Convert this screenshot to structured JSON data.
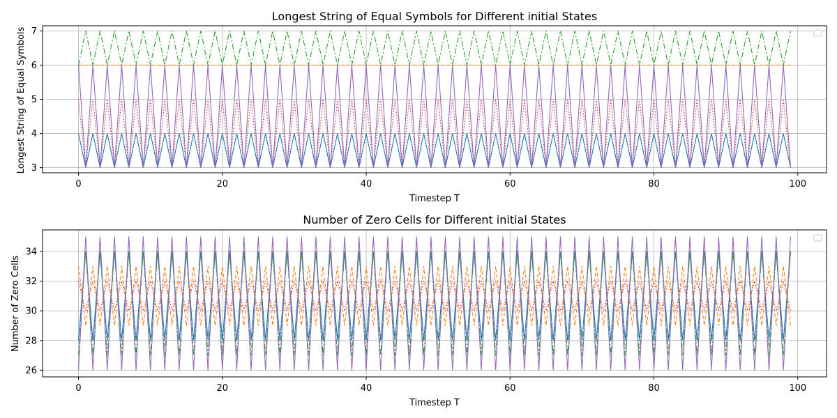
{
  "chart_data": [
    {
      "type": "line",
      "title": "Longest String of Equal Symbols for Different initial States",
      "xlabel": "Timestep T",
      "ylabel": "Longest String of Equal Symbols",
      "xlim": [
        -5,
        104
      ],
      "ylim": [
        2.85,
        7.15
      ],
      "xticks": [
        0,
        20,
        40,
        60,
        80,
        100
      ],
      "yticks": [
        3,
        4,
        5,
        6,
        7
      ],
      "grid": true,
      "legend": "upper-right (empty)",
      "x": {
        "start": 0,
        "end": 99,
        "step": 1
      },
      "series": [
        {
          "color": "#1f77b4",
          "dash": "solid",
          "pattern": [
            4,
            3
          ],
          "values": [
            4,
            3,
            4,
            3,
            4,
            3,
            4,
            3,
            4,
            3,
            4,
            3,
            4,
            3,
            4,
            3,
            4,
            3,
            4,
            3,
            4,
            3,
            4,
            3,
            4,
            3,
            4,
            3,
            4,
            3,
            4,
            3,
            4,
            3,
            4,
            3,
            4,
            3,
            4,
            3,
            4,
            3,
            4,
            3,
            4,
            3,
            4,
            3,
            4,
            3,
            4,
            3,
            4,
            3,
            4,
            3,
            4,
            3,
            4,
            3,
            4,
            3,
            4,
            3,
            4,
            3,
            4,
            3,
            4,
            3,
            4,
            3,
            4,
            3,
            4,
            3,
            4,
            3,
            4,
            3,
            4,
            3,
            4,
            3,
            4,
            3,
            4,
            3,
            4,
            3,
            4,
            3,
            4,
            3,
            4,
            3,
            4,
            3,
            4,
            3
          ]
        },
        {
          "color": "#ff7f0e",
          "dash": "dashed",
          "pattern": [
            6
          ],
          "values": [
            6,
            6,
            6,
            6,
            6,
            6,
            6,
            6,
            6,
            6,
            6,
            6,
            6,
            6,
            6,
            6,
            6,
            6,
            6,
            6,
            6,
            6,
            6,
            6,
            6,
            6,
            6,
            6,
            6,
            6,
            6,
            6,
            6,
            6,
            6,
            6,
            6,
            6,
            6,
            6,
            6,
            6,
            6,
            6,
            6,
            6,
            6,
            6,
            6,
            6,
            6,
            6,
            6,
            6,
            6,
            6,
            6,
            6,
            6,
            6,
            6,
            6,
            6,
            6,
            6,
            6,
            6,
            6,
            6,
            6,
            6,
            6,
            6,
            6,
            6,
            6,
            6,
            6,
            6,
            6,
            6,
            6,
            6,
            6,
            6,
            6,
            6,
            6,
            6,
            6,
            6,
            6,
            6,
            6,
            6,
            6,
            6,
            6,
            6,
            6
          ]
        },
        {
          "color": "#2ca02c",
          "dash": "dashdot",
          "pattern": [
            6,
            7
          ],
          "values": [
            6,
            7,
            6,
            7,
            6,
            7,
            6,
            7,
            6,
            7,
            6,
            7,
            6,
            7,
            6,
            7,
            6,
            7,
            6,
            7,
            6,
            7,
            6,
            7,
            6,
            7,
            6,
            7,
            6,
            7,
            6,
            7,
            6,
            7,
            6,
            7,
            6,
            7,
            6,
            7,
            6,
            7,
            6,
            7,
            6,
            7,
            6,
            7,
            6,
            7,
            6,
            7,
            6,
            7,
            6,
            7,
            6,
            7,
            6,
            7,
            6,
            7,
            6,
            7,
            6,
            7,
            6,
            7,
            6,
            7,
            6,
            7,
            6,
            7,
            6,
            7,
            6,
            7,
            6,
            7,
            6,
            7,
            6,
            7,
            6,
            7,
            6,
            7,
            6,
            7,
            6,
            7,
            6,
            7,
            6,
            7,
            6,
            7,
            6,
            7
          ]
        },
        {
          "color": "#d62728",
          "dash": "dotted",
          "pattern": [
            5,
            3
          ],
          "values": [
            5,
            3,
            5,
            3,
            5,
            3,
            5,
            3,
            5,
            3,
            5,
            3,
            5,
            3,
            5,
            3,
            5,
            3,
            5,
            3,
            5,
            3,
            5,
            3,
            5,
            3,
            5,
            3,
            5,
            3,
            5,
            3,
            5,
            3,
            5,
            3,
            5,
            3,
            5,
            3,
            5,
            3,
            5,
            3,
            5,
            3,
            5,
            3,
            5,
            3,
            5,
            3,
            5,
            3,
            5,
            3,
            5,
            3,
            5,
            3,
            5,
            3,
            5,
            3,
            5,
            3,
            5,
            3,
            5,
            3,
            5,
            3,
            5,
            3,
            5,
            3,
            5,
            3,
            5,
            3,
            5,
            3,
            5,
            3,
            5,
            3,
            5,
            3,
            5,
            3,
            5,
            3,
            5,
            3,
            5,
            3,
            5,
            3,
            5,
            3
          ]
        },
        {
          "color": "#9467bd",
          "dash": "solid",
          "pattern": [
            6,
            3
          ],
          "values": [
            6,
            3,
            6,
            3,
            6,
            3,
            6,
            3,
            6,
            3,
            6,
            3,
            6,
            3,
            6,
            3,
            6,
            3,
            6,
            3,
            6,
            3,
            6,
            3,
            6,
            3,
            6,
            3,
            6,
            3,
            6,
            3,
            6,
            3,
            6,
            3,
            6,
            3,
            6,
            3,
            6,
            3,
            6,
            3,
            6,
            3,
            6,
            3,
            6,
            3,
            6,
            3,
            6,
            3,
            6,
            3,
            6,
            3,
            6,
            3,
            6,
            3,
            6,
            3,
            6,
            3,
            6,
            3,
            6,
            3,
            6,
            3,
            6,
            3,
            6,
            3,
            6,
            3,
            6,
            3,
            6,
            3,
            6,
            3,
            6,
            3,
            6,
            3,
            6,
            3,
            6,
            3,
            6,
            3,
            6,
            3,
            6,
            3,
            6,
            3
          ]
        }
      ]
    },
    {
      "type": "line",
      "title": "Number of Zero Cells for Different initial States",
      "xlabel": "Timestep T",
      "ylabel": "Number of Zero Cells",
      "xlim": [
        -5,
        104
      ],
      "ylim": [
        25.55,
        35.45
      ],
      "xticks": [
        0,
        20,
        40,
        60,
        80,
        100
      ],
      "yticks": [
        26,
        28,
        30,
        32,
        34
      ],
      "grid": true,
      "legend": "upper-right (empty)",
      "x": {
        "start": 0,
        "end": 99,
        "step": 1
      },
      "series": [
        {
          "color": "#1f77b4",
          "dash": "solid",
          "pattern": [
            28,
            34
          ],
          "values": [
            28,
            34,
            28,
            34,
            28,
            34,
            28,
            34,
            28,
            34,
            28,
            34,
            28,
            34,
            28,
            34,
            28,
            34,
            28,
            34,
            28,
            34,
            28,
            34,
            28,
            34,
            28,
            34,
            28,
            34,
            28,
            34,
            28,
            34,
            28,
            34,
            28,
            34,
            28,
            34,
            28,
            34,
            28,
            34,
            28,
            34,
            28,
            34,
            28,
            34,
            28,
            34,
            28,
            34,
            28,
            34,
            28,
            34,
            28,
            34,
            28,
            34,
            28,
            34,
            28,
            34,
            28,
            34,
            28,
            34,
            28,
            34,
            28,
            34,
            28,
            34,
            28,
            34,
            28,
            34,
            28,
            34,
            28,
            34,
            28,
            34,
            28,
            34,
            28,
            34,
            28,
            34,
            28,
            34,
            28,
            34,
            28,
            34,
            28,
            34
          ]
        },
        {
          "color": "#ff7f0e",
          "dash": "dashed",
          "pattern": [
            33,
            29
          ],
          "values": [
            33,
            29,
            33,
            29,
            33,
            29,
            33,
            29,
            33,
            29,
            33,
            29,
            33,
            29,
            33,
            29,
            33,
            29,
            33,
            29,
            33,
            29,
            33,
            29,
            33,
            29,
            33,
            29,
            33,
            29,
            33,
            29,
            33,
            29,
            33,
            29,
            33,
            29,
            33,
            29,
            33,
            29,
            33,
            29,
            33,
            29,
            33,
            29,
            33,
            29,
            33,
            29,
            33,
            29,
            33,
            29,
            33,
            29,
            33,
            29,
            33,
            29,
            33,
            29,
            33,
            29,
            33,
            29,
            33,
            29,
            33,
            29,
            33,
            29,
            33,
            29,
            33,
            29,
            33,
            29,
            33,
            29,
            33,
            29,
            33,
            29,
            33,
            29,
            33,
            29,
            33,
            29,
            33,
            29,
            33,
            29,
            33,
            29,
            33,
            29
          ]
        },
        {
          "color": "#2ca02c",
          "dash": "dashdot",
          "pattern": [
            27,
            34
          ],
          "values": [
            27,
            34,
            27,
            34,
            27,
            34,
            27,
            34,
            27,
            34,
            27,
            34,
            27,
            34,
            27,
            34,
            27,
            34,
            27,
            34,
            27,
            34,
            27,
            34,
            27,
            34,
            27,
            34,
            27,
            34,
            27,
            34,
            27,
            34,
            27,
            34,
            27,
            34,
            27,
            34,
            27,
            34,
            27,
            34,
            27,
            34,
            27,
            34,
            27,
            34,
            27,
            34,
            27,
            34,
            27,
            34,
            27,
            34,
            27,
            34,
            27,
            34,
            27,
            34,
            27,
            34,
            27,
            34,
            27,
            34,
            27,
            34,
            27,
            34,
            27,
            34,
            27,
            34,
            27,
            34,
            27,
            34,
            27,
            34,
            27,
            34,
            27,
            34,
            27,
            34,
            27,
            34,
            27,
            34,
            27,
            34,
            27,
            34,
            27,
            34
          ]
        },
        {
          "color": "#d62728",
          "dash": "dotted",
          "pattern": [
            32,
            30
          ],
          "values": [
            32,
            30,
            32,
            30,
            32,
            30,
            32,
            30,
            32,
            30,
            32,
            30,
            32,
            30,
            32,
            30,
            32,
            30,
            32,
            30,
            32,
            30,
            32,
            30,
            32,
            30,
            32,
            30,
            32,
            30,
            32,
            30,
            32,
            30,
            32,
            30,
            32,
            30,
            32,
            30,
            32,
            30,
            32,
            30,
            32,
            30,
            32,
            30,
            32,
            30,
            32,
            30,
            32,
            30,
            32,
            30,
            32,
            30,
            32,
            30,
            32,
            30,
            32,
            30,
            32,
            30,
            32,
            30,
            32,
            30,
            32,
            30,
            32,
            30,
            32,
            30,
            32,
            30,
            32,
            30,
            32,
            30,
            32,
            30,
            32,
            30,
            32,
            30,
            32,
            30,
            32,
            30,
            32,
            30,
            32,
            30,
            32,
            30,
            32,
            30
          ]
        },
        {
          "color": "#9467bd",
          "dash": "solid",
          "pattern": [
            26,
            35
          ],
          "values": [
            26,
            35,
            26,
            35,
            26,
            35,
            26,
            35,
            26,
            35,
            26,
            35,
            26,
            35,
            26,
            35,
            26,
            35,
            26,
            35,
            26,
            35,
            26,
            35,
            26,
            35,
            26,
            35,
            26,
            35,
            26,
            35,
            26,
            35,
            26,
            35,
            26,
            35,
            26,
            35,
            26,
            35,
            26,
            35,
            26,
            35,
            26,
            35,
            26,
            35,
            26,
            35,
            26,
            35,
            26,
            35,
            26,
            35,
            26,
            35,
            26,
            35,
            26,
            35,
            26,
            35,
            26,
            35,
            26,
            35,
            26,
            35,
            26,
            35,
            26,
            35,
            26,
            35,
            26,
            35,
            26,
            35,
            26,
            35,
            26,
            35,
            26,
            35,
            26,
            35,
            26,
            35,
            26,
            35,
            26,
            35,
            26,
            35,
            26,
            35
          ]
        }
      ]
    }
  ]
}
